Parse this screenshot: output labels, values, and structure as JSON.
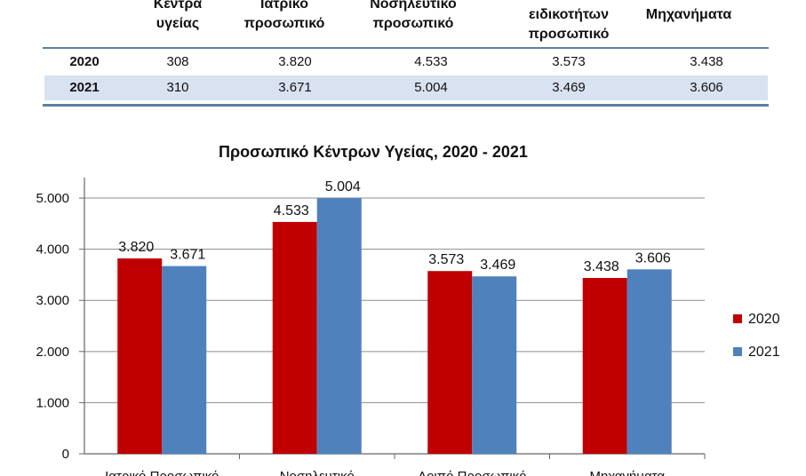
{
  "table": {
    "headers": [
      {
        "id": "centers",
        "lines": [
          "Κέντρα",
          "υγείας"
        ]
      },
      {
        "id": "medical",
        "lines": [
          "Ιατρικό",
          "προσωπικό"
        ]
      },
      {
        "id": "nursing",
        "lines": [
          "Νοσηλευτικό",
          "προσωπικό"
        ]
      },
      {
        "id": "other",
        "lines": [
          "ειδικοτήτων",
          "προσωπικό"
        ]
      },
      {
        "id": "machines",
        "lines": [
          "Μηχανήματα"
        ]
      }
    ],
    "rows": [
      {
        "year": "2020",
        "cells": [
          "308",
          "3.820",
          "4.533",
          "3.573",
          "3.438"
        ]
      },
      {
        "year": "2021",
        "cells": [
          "310",
          "3.671",
          "5.004",
          "3.469",
          "3.606"
        ]
      }
    ]
  },
  "chart_data": {
    "type": "bar",
    "title": "Προσωπικό Κέντρων Υγείας, 2020 - 2021",
    "categories": [
      "Ιατρικό Προσωπικό",
      "Νοσηλευτικό",
      "Λοιπό Προσωπικό",
      "Μηχανήματα"
    ],
    "series": [
      {
        "name": "2020",
        "values": [
          3820,
          4533,
          3573,
          3438
        ],
        "labels": [
          "3.820",
          "4.533",
          "3.573",
          "3.438"
        ],
        "color": "#c00000"
      },
      {
        "name": "2021",
        "values": [
          3671,
          5004,
          3469,
          3606
        ],
        "labels": [
          "3.671",
          "5.004",
          "3.469",
          "3.606"
        ],
        "color": "#4f81bd"
      }
    ],
    "ylim": [
      0,
      5400
    ],
    "yticks": [
      0,
      1000,
      2000,
      3000,
      4000,
      5000
    ],
    "ytick_labels": [
      "0",
      "1.000",
      "2.000",
      "3.000",
      "4.000",
      "5.000"
    ],
    "grid": true,
    "legend_position": "right"
  }
}
